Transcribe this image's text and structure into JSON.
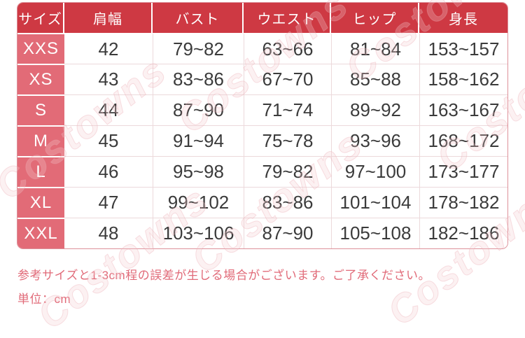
{
  "watermark": {
    "text": "Costowns"
  },
  "table": {
    "headers": [
      "サイズ",
      "肩幅",
      "バスト",
      "ウエスト",
      "ヒップ",
      "身長"
    ],
    "rows": [
      {
        "size": "XXS",
        "values": [
          "42",
          "79~82",
          "63~66",
          "81~84",
          "153~157"
        ]
      },
      {
        "size": "XS",
        "values": [
          "43",
          "83~86",
          "67~70",
          "85~88",
          "158~162"
        ]
      },
      {
        "size": "S",
        "values": [
          "44",
          "87~90",
          "71~74",
          "89~92",
          "163~167"
        ]
      },
      {
        "size": "M",
        "values": [
          "45",
          "91~94",
          "75~78",
          "93~96",
          "168~172"
        ]
      },
      {
        "size": "L",
        "values": [
          "46",
          "95~98",
          "79~82",
          "97~100",
          "173~177"
        ]
      },
      {
        "size": "XL",
        "values": [
          "47",
          "99~102",
          "83~86",
          "101~104",
          "178~182"
        ]
      },
      {
        "size": "XXL",
        "values": [
          "48",
          "103~106",
          "87~90",
          "105~108",
          "182~186"
        ]
      }
    ]
  },
  "notes": {
    "disclaimer": "参考サイズと1-3cm程の誤差が生じる場合がございます。ご了承ください。",
    "unit": "単位：cm"
  },
  "colors": {
    "header_bg": "#ce3943",
    "size_col_bg": "#e26b77",
    "cell_text": "#3b3b3b",
    "grid_line": "#ecd9db",
    "outer_border": "#dd919a",
    "note_text": "#e16b79"
  }
}
